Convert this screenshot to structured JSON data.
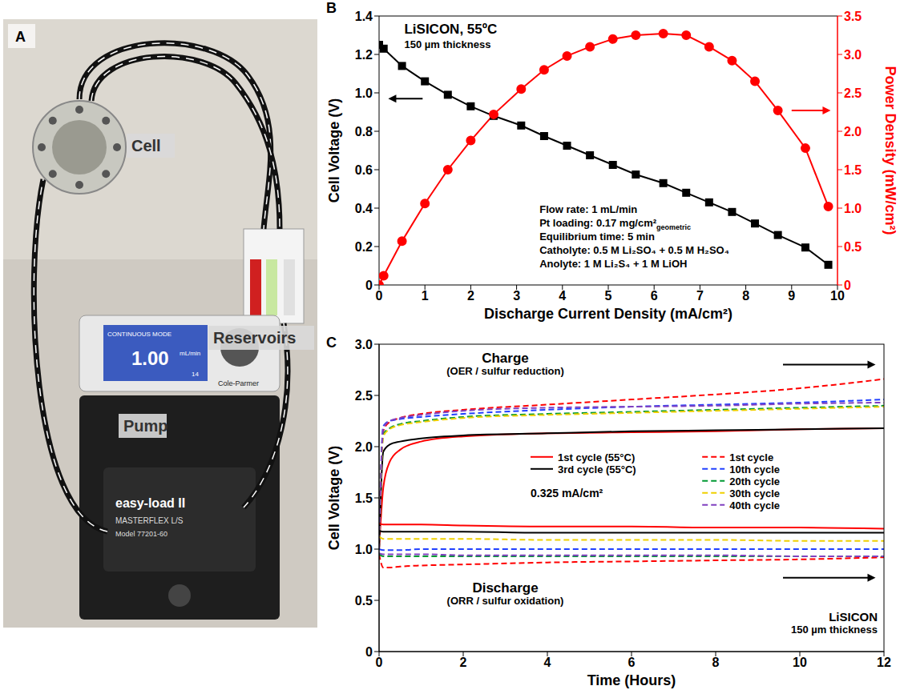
{
  "photo": {
    "panel": "A",
    "labels": [
      "Cell",
      "Pump",
      "Reservoirs"
    ],
    "pump_display": [
      "CONTINUOUS MODE",
      "1.00",
      "mL/min",
      "14"
    ],
    "pump_texts": [
      "Cole-Parmer",
      "easy-load II",
      "MASTERFLEX L/S",
      "Model 77201-60"
    ]
  },
  "chart_data": [
    {
      "panel": "B",
      "type": "line",
      "title": "LiSICON, 55ºC",
      "subtitle": "150 µm thickness",
      "x": [
        0,
        0.1,
        0.5,
        1.0,
        1.5,
        2.0,
        2.5,
        3.1,
        3.6,
        4.1,
        4.6,
        5.1,
        5.6,
        6.2,
        6.7,
        7.2,
        7.7,
        8.2,
        8.7,
        9.3,
        9.8
      ],
      "series": [
        {
          "color": "#000000",
          "marker": "square",
          "values": [
            1.25,
            1.23,
            1.14,
            1.06,
            0.99,
            0.93,
            0.88,
            0.83,
            0.775,
            0.725,
            0.675,
            0.625,
            0.575,
            0.53,
            0.48,
            0.43,
            0.38,
            0.32,
            0.26,
            0.195,
            0.105
          ]
        },
        {
          "color": "#ff0000",
          "marker": "circle",
          "axis": "y2",
          "values": [
            0,
            0.12,
            0.57,
            1.06,
            1.5,
            1.88,
            2.22,
            2.55,
            2.8,
            2.98,
            3.1,
            3.2,
            3.25,
            3.27,
            3.25,
            3.1,
            2.92,
            2.65,
            2.27,
            1.78,
            1.02
          ]
        }
      ],
      "xlabel": "Discharge Current Density (mA/cm²)",
      "ylabel": "Cell Voltage (V)",
      "y2label": "Power Density (mW/cm²)",
      "xlim": [
        0,
        10
      ],
      "xticks": [
        0,
        1,
        2,
        3,
        4,
        5,
        6,
        7,
        8,
        9,
        10
      ],
      "ylim": [
        0,
        1.4
      ],
      "yticks": [
        0,
        0.2,
        0.4,
        0.6,
        0.8,
        {
          "value": 1,
          "label": "1.0"
        },
        1.2,
        1.4
      ],
      "y2lim": [
        0,
        3.5
      ],
      "y2ticks": [
        0,
        0.5,
        {
          "value": 1,
          "label": "1.0"
        },
        1.5,
        {
          "value": 2,
          "label": "2.0"
        },
        2.5,
        {
          "value": 3,
          "label": "3.0"
        },
        3.5
      ],
      "annotations": [
        {
          "text": "Flow rate: 1 mL/min"
        },
        {
          "text": "Pt loading: 0.17 mg/cm²",
          "subscript": "geometric"
        },
        {
          "text": "Equilibrium time: 5 min"
        },
        {
          "text": "Catholyte: 0.5 M Li₂SO₄ + 0.5 M H₂SO₄"
        },
        {
          "text": "Anolyte: 1 M Li₂S₄ + 1 M LiOH"
        }
      ]
    },
    {
      "panel": "C",
      "type": "line",
      "title": "LiSICON",
      "subtitle": "150 µm thickness",
      "x": [
        0,
        0.1,
        0.25,
        0.5,
        1,
        2,
        4,
        6,
        8,
        10,
        12
      ],
      "series": [
        {
          "name": "1st cycle (55°C)",
          "color": "#ff0000",
          "line_style": "solid",
          "values": [
            1.0,
            1.6,
            1.85,
            1.97,
            2.05,
            2.1,
            2.13,
            2.14,
            2.15,
            2.17,
            2.18
          ],
          "discharge_values": [
            1.25,
            1.24,
            1.24,
            1.24,
            1.24,
            1.23,
            1.22,
            1.22,
            1.21,
            1.21,
            1.2
          ]
        },
        {
          "name": "3rd cycle (55°C)",
          "color": "#000000",
          "line_style": "solid",
          "values": [
            1.0,
            1.95,
            2.02,
            2.05,
            2.08,
            2.11,
            2.13,
            2.15,
            2.16,
            2.17,
            2.18
          ],
          "discharge_values": [
            1.18,
            1.17,
            1.17,
            1.17,
            1.17,
            1.17,
            1.16,
            1.16,
            1.16,
            1.16,
            1.16
          ]
        },
        {
          "name": "1st cycle",
          "color": "#ff0000",
          "line_style": "dashed",
          "values": [
            1.0,
            2.15,
            2.24,
            2.28,
            2.32,
            2.36,
            2.41,
            2.46,
            2.51,
            2.57,
            2.66
          ],
          "discharge_values": [
            0.95,
            0.82,
            0.82,
            0.83,
            0.84,
            0.85,
            0.87,
            0.88,
            0.89,
            0.9,
            0.92
          ]
        },
        {
          "name": "10th cycle",
          "color": "#2040ff",
          "line_style": "dashed",
          "values": [
            1.0,
            2.2,
            2.25,
            2.27,
            2.29,
            2.32,
            2.36,
            2.39,
            2.41,
            2.43,
            2.46
          ],
          "discharge_values": [
            1.0,
            0.99,
            0.99,
            0.99,
            1.0,
            1.0,
            1.0,
            1.0,
            1.0,
            1.0,
            1.0
          ]
        },
        {
          "name": "20th cycle",
          "color": "#009933",
          "line_style": "dashed",
          "values": [
            1.0,
            2.12,
            2.18,
            2.22,
            2.25,
            2.29,
            2.32,
            2.34,
            2.36,
            2.38,
            2.4
          ],
          "discharge_values": [
            0.95,
            0.93,
            0.93,
            0.93,
            0.93,
            0.93,
            0.93,
            0.93,
            0.93,
            0.93,
            0.93
          ]
        },
        {
          "name": "30th cycle",
          "color": "#f0d000",
          "line_style": "dashed",
          "values": [
            1.0,
            2.1,
            2.17,
            2.21,
            2.24,
            2.28,
            2.31,
            2.33,
            2.35,
            2.37,
            2.39
          ],
          "discharge_values": [
            1.12,
            1.1,
            1.1,
            1.1,
            1.1,
            1.1,
            1.09,
            1.09,
            1.09,
            1.08,
            1.08
          ]
        },
        {
          "name": "40th cycle",
          "color": "#8040c0",
          "line_style": "dashed",
          "values": [
            1.0,
            2.18,
            2.25,
            2.28,
            2.31,
            2.35,
            2.38,
            2.39,
            2.4,
            2.42,
            2.43
          ],
          "discharge_values": [
            0.96,
            0.95,
            0.95,
            0.95,
            0.95,
            0.94,
            0.94,
            0.94,
            0.94,
            0.93,
            0.93
          ]
        }
      ],
      "xlabel": "Time (Hours)",
      "ylabel": "Cell Voltage (V)",
      "xlim": [
        0,
        12
      ],
      "xticks": [
        0,
        2,
        4,
        6,
        8,
        10,
        12
      ],
      "ylim": [
        0,
        3
      ],
      "yticks": [
        0,
        0.5,
        {
          "value": 1,
          "label": "1.0"
        },
        1.5,
        {
          "value": 2,
          "label": "2.0"
        },
        2.5,
        {
          "value": 3,
          "label": "3.0"
        }
      ],
      "legend": "right",
      "annotations": {
        "charge": "Charge",
        "charge_note": "(OER / sulfur reduction)",
        "discharge": "Discharge",
        "discharge_note": "(ORR / sulfur oxidation)",
        "current": "0.325 mA/cm²"
      }
    }
  ]
}
